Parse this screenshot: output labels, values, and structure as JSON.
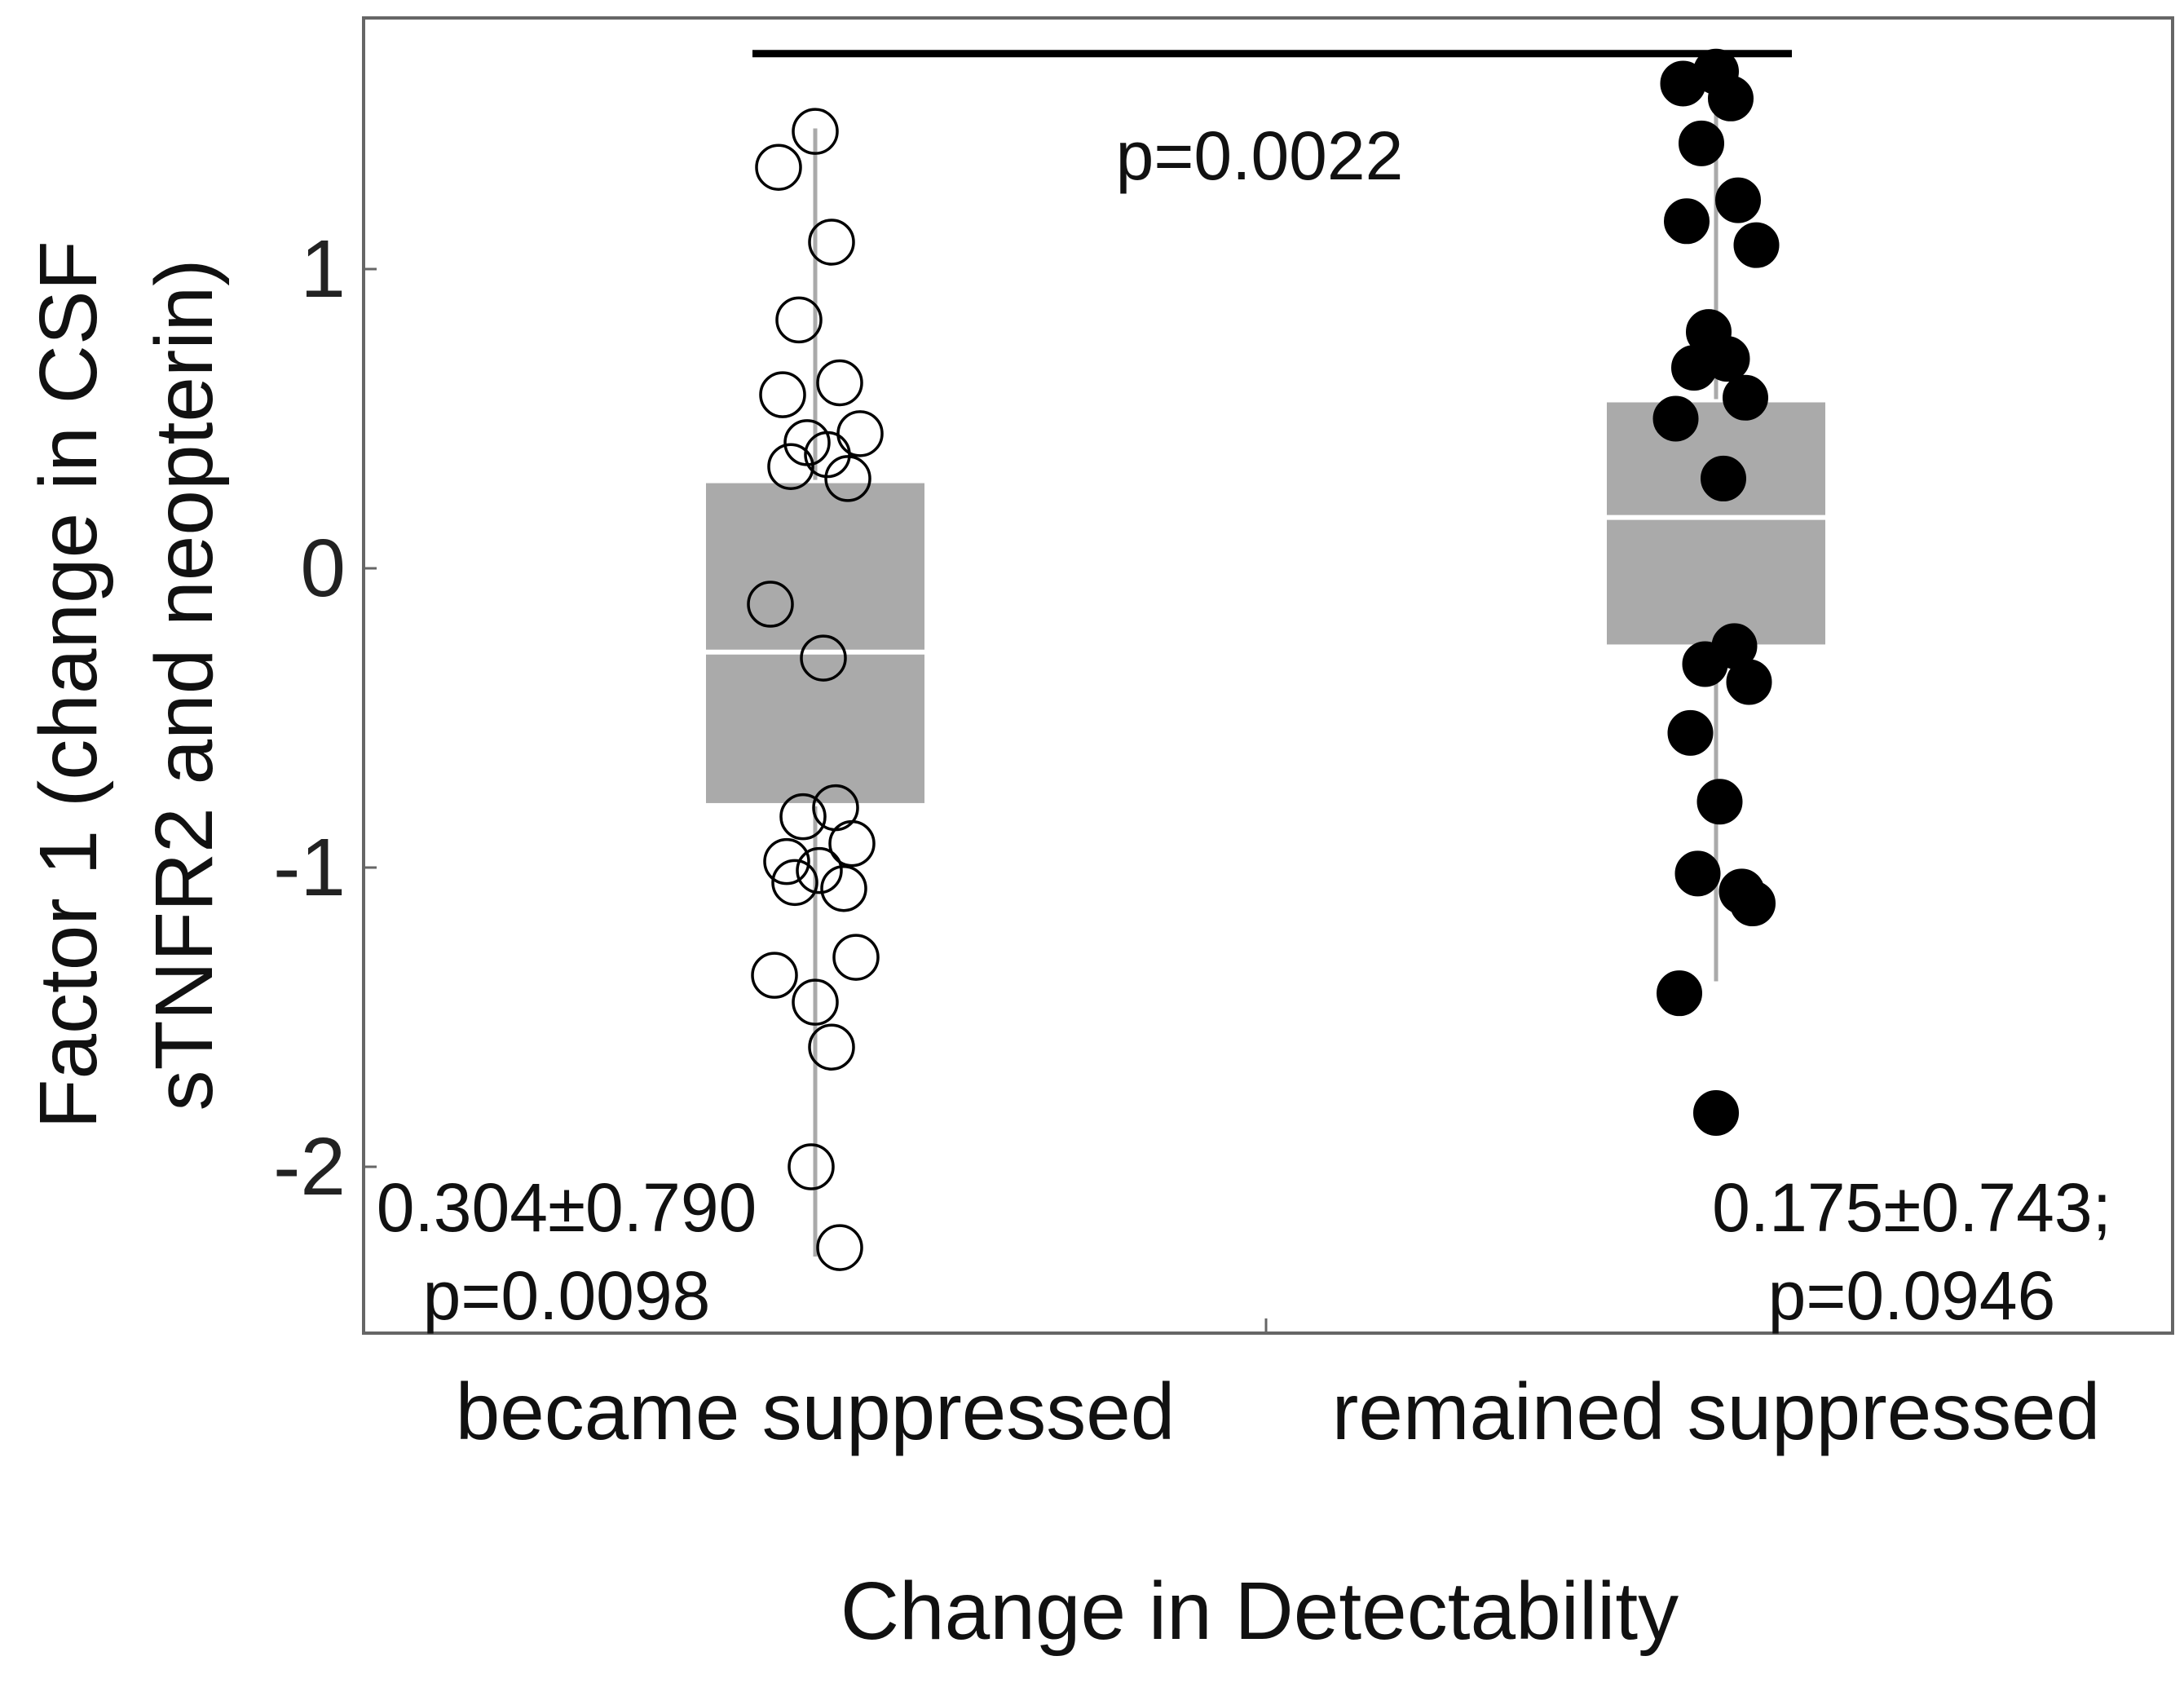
{
  "chart_data": {
    "type": "box",
    "title": "",
    "xlabel": "Change in Detectability",
    "ylabel_lines": [
      "Factor 1 (change in CSF",
      "sTNFR2 and neopterin)"
    ],
    "ylim": [
      -2.5,
      1.8
    ],
    "yticks": [
      1,
      0,
      -1,
      -2
    ],
    "ytick_labels": [
      "1",
      "0",
      "-1",
      "-2"
    ],
    "grid": false,
    "legend": "none",
    "colors": {
      "box": "#aaaaaa",
      "median": "#ffffff",
      "whisker": "#aaaaaa",
      "filled_point": "#000000",
      "open_point_stroke": "#000000"
    },
    "categories": [
      "became suppressed",
      "remained suppressed"
    ],
    "groups": [
      {
        "category": "became suppressed",
        "marker": "open-circle",
        "box": {
          "q1": -0.79,
          "median": -0.28,
          "q3": 0.29,
          "whisker_low": -2.3,
          "whisker_high": 1.47
        },
        "annotation": {
          "line1": "0.304±0.790",
          "line2": "p=0.0098"
        },
        "points": [
          1.46,
          1.34,
          1.09,
          0.83,
          0.62,
          0.58,
          0.45,
          0.42,
          0.38,
          0.34,
          0.3,
          -0.12,
          -0.3,
          -0.8,
          -0.83,
          -0.92,
          -0.98,
          -1.01,
          -1.05,
          -1.07,
          -1.3,
          -1.36,
          -1.45,
          -1.6,
          -2.0,
          -2.27
        ]
      },
      {
        "category": "remained suppressed",
        "marker": "filled-circle",
        "box": {
          "q1": -0.26,
          "median": 0.17,
          "q3": 0.56,
          "whisker_low": -1.38,
          "whisker_high": 1.68
        },
        "annotation": {
          "line1": "0.175±0.743;",
          "line2": "p=0.0946"
        },
        "points": [
          1.66,
          1.62,
          1.57,
          1.42,
          1.23,
          1.16,
          1.08,
          0.79,
          0.7,
          0.67,
          0.57,
          0.5,
          0.3,
          -0.26,
          -0.32,
          -0.38,
          -0.55,
          -0.78,
          -1.02,
          -1.08,
          -1.12,
          -1.42,
          -1.82
        ]
      }
    ],
    "comparison": {
      "from": "became suppressed",
      "to": "remained suppressed",
      "label": "p=0.0022",
      "y": 1.72
    }
  }
}
